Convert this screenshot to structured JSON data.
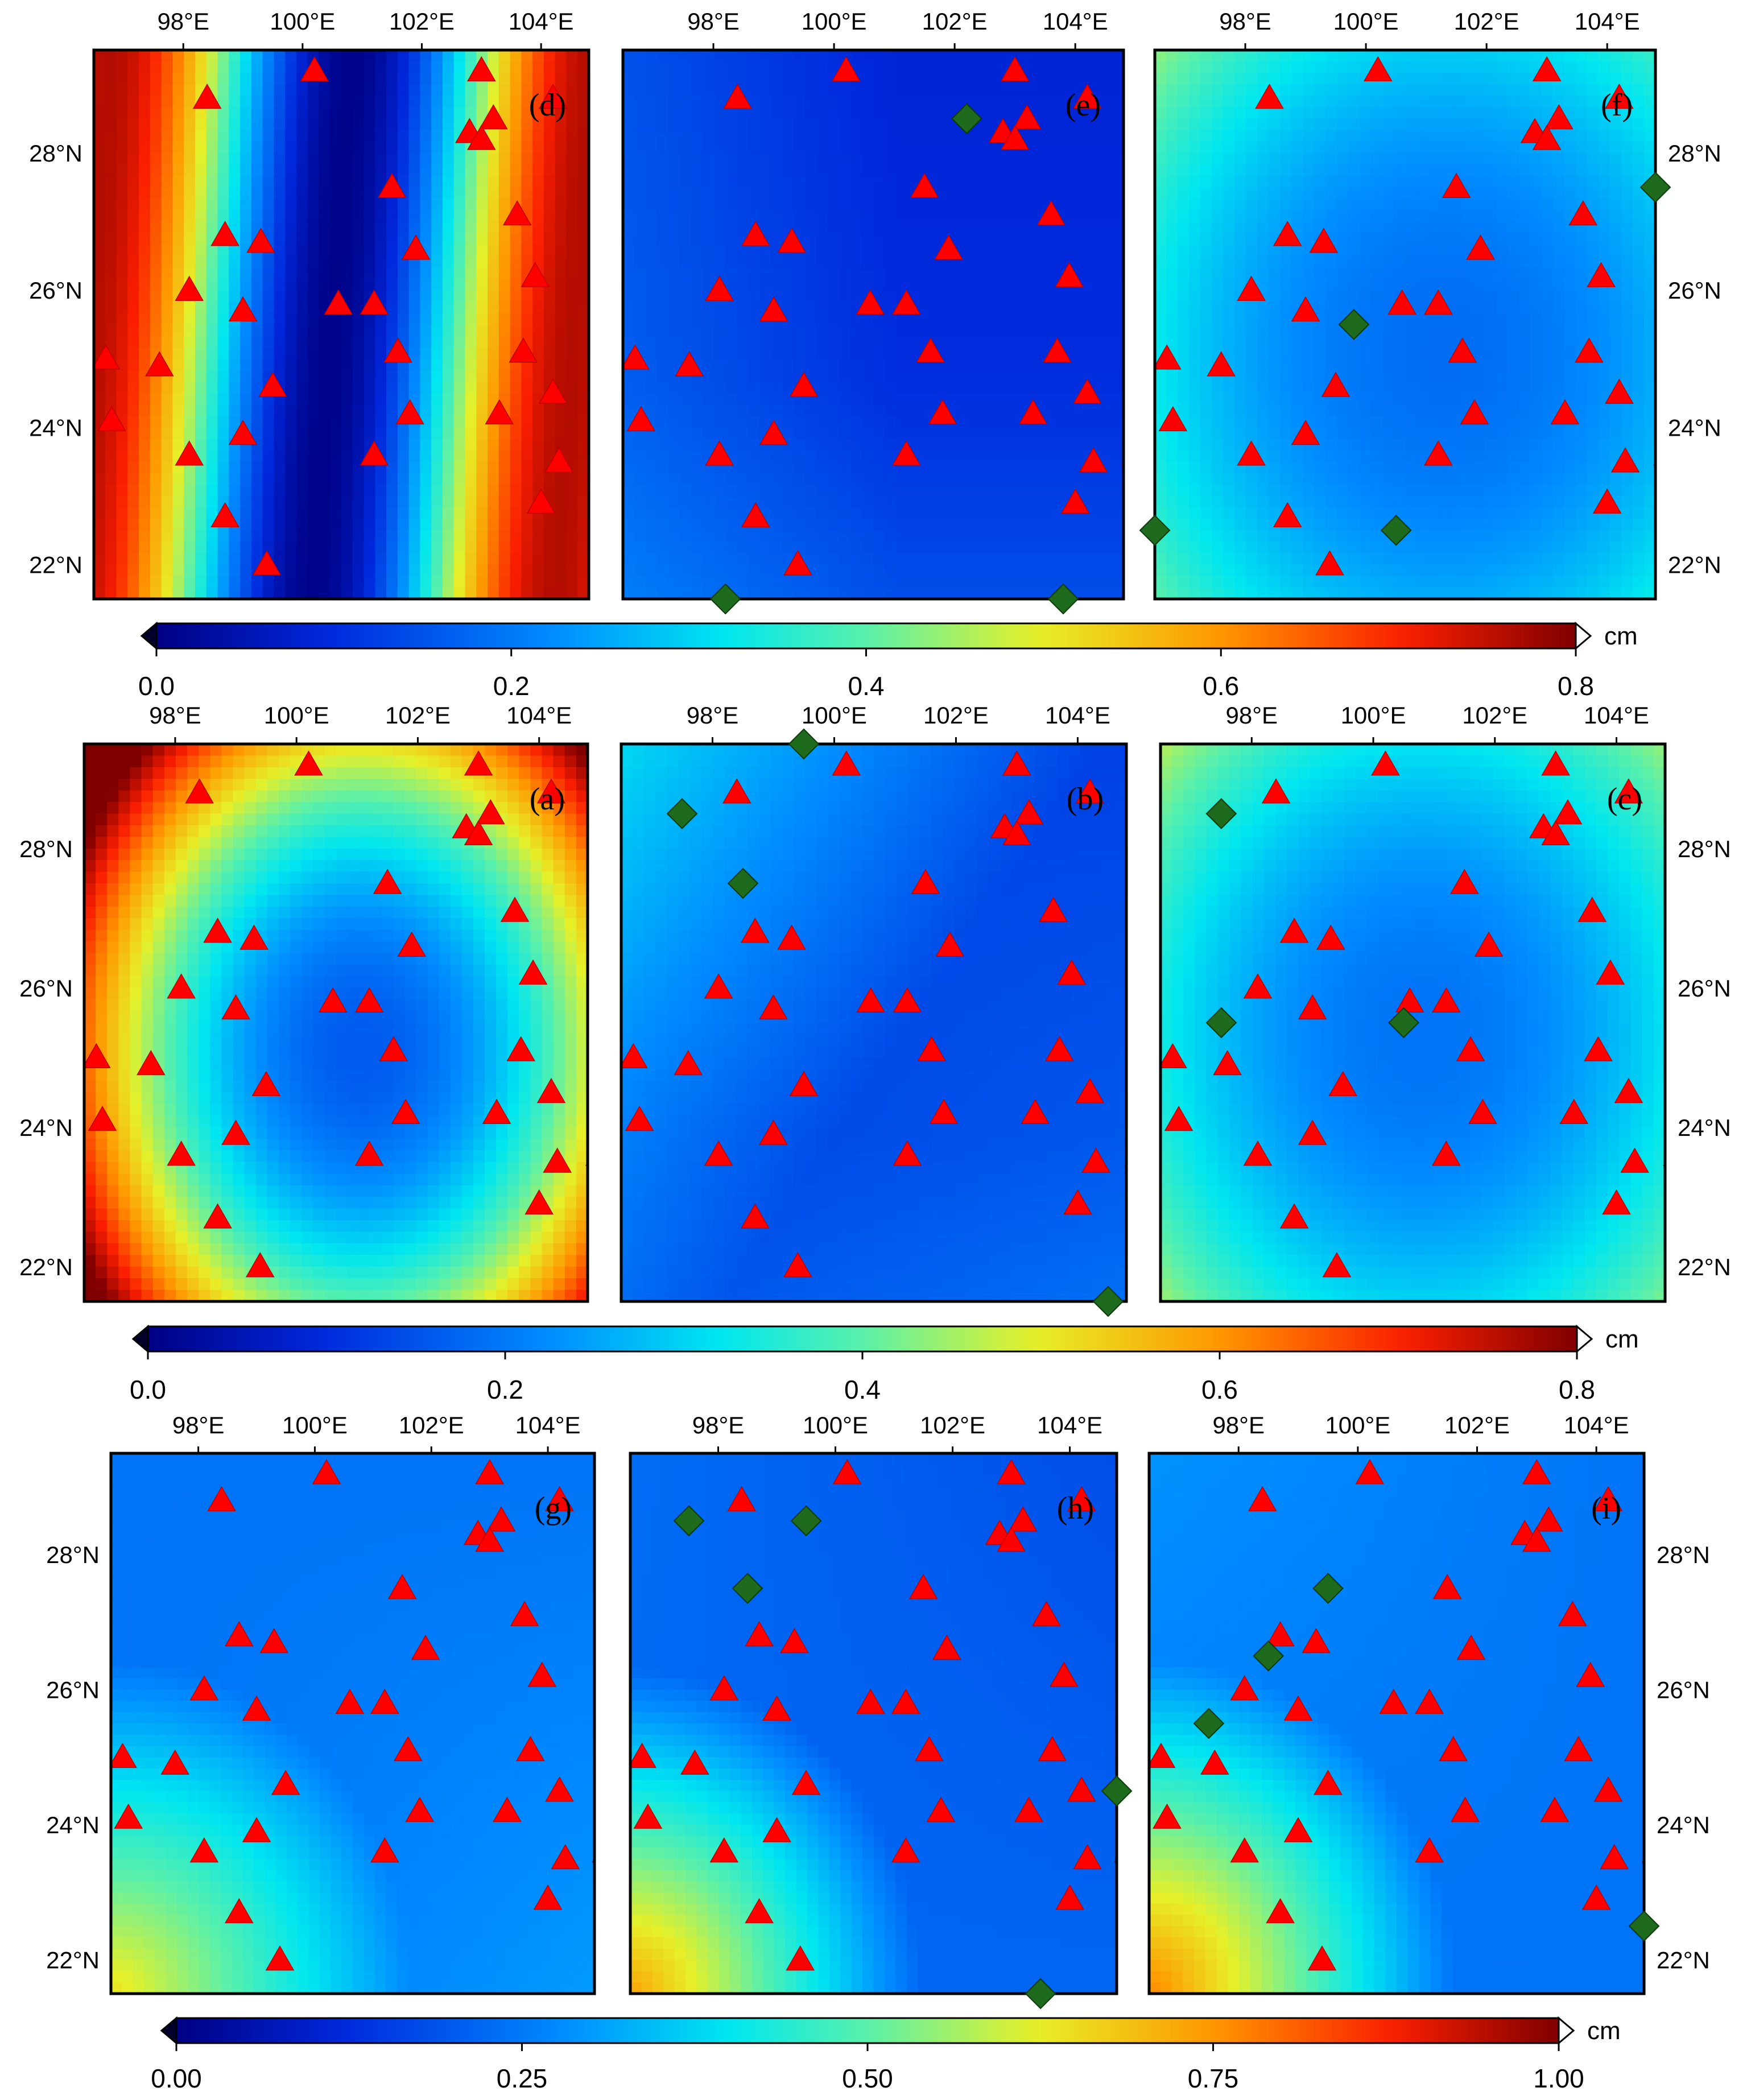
{
  "axes": {
    "lon_ticks": [
      "98°E",
      "100°E",
      "102°E",
      "104°E"
    ],
    "lat_ticks": [
      "22°N",
      "24°N",
      "26°N",
      "28°N"
    ],
    "lon_values": [
      98,
      100,
      102,
      104
    ],
    "lat_values": [
      22,
      24,
      26,
      28
    ],
    "lon_range": [
      96.5,
      104.8
    ],
    "lat_range": [
      21.5,
      29.5
    ]
  },
  "colorbars": [
    {
      "unit": "cm",
      "ticks": [
        "0.0",
        "0.2",
        "0.4",
        "0.6",
        "0.8"
      ],
      "range": [
        0,
        0.8
      ]
    },
    {
      "unit": "cm",
      "ticks": [
        "0.0",
        "0.2",
        "0.4",
        "0.6",
        "0.8"
      ],
      "range": [
        0,
        0.8
      ]
    },
    {
      "unit": "cm",
      "ticks": [
        "0.00",
        "0.25",
        "0.50",
        "0.75",
        "1.00"
      ],
      "range": [
        0,
        1.0
      ]
    }
  ],
  "panels": [
    {
      "label": "(d)",
      "field": "d",
      "diamonds": []
    },
    {
      "label": "(e)",
      "field": "e",
      "diamonds": [
        [
          98.2,
          21.5
        ],
        [
          103.8,
          21.5
        ],
        [
          102.2,
          28.5
        ]
      ]
    },
    {
      "label": "(f)",
      "field": "f",
      "diamonds": [
        [
          96.5,
          22.5
        ],
        [
          99.8,
          25.5
        ],
        [
          100.5,
          22.5
        ],
        [
          104.8,
          27.5
        ]
      ]
    },
    {
      "label": "(a)",
      "field": "a",
      "diamonds": []
    },
    {
      "label": "(b)",
      "field": "b",
      "diamonds": [
        [
          97.5,
          28.5
        ],
        [
          98.5,
          27.5
        ],
        [
          99.5,
          29.5
        ],
        [
          104.5,
          21.5
        ]
      ]
    },
    {
      "label": "(c)",
      "field": "c",
      "diamonds": [
        [
          97.5,
          28.5
        ],
        [
          97.5,
          25.5
        ],
        [
          100.5,
          25.5
        ]
      ]
    },
    {
      "label": "(g)",
      "field": "g",
      "diamonds": []
    },
    {
      "label": "(h)",
      "field": "h",
      "diamonds": [
        [
          97.5,
          28.5
        ],
        [
          99.5,
          28.5
        ],
        [
          98.5,
          27.5
        ],
        [
          104.8,
          24.5
        ],
        [
          103.5,
          21.5
        ]
      ]
    },
    {
      "label": "(i)",
      "field": "i",
      "diamonds": [
        [
          99.5,
          27.5
        ],
        [
          98.5,
          26.5
        ],
        [
          97.5,
          25.5
        ],
        [
          104.8,
          22.5
        ]
      ]
    }
  ],
  "stations": [
    [
      100.2,
      29.2
    ],
    [
      103.0,
      29.2
    ],
    [
      104.2,
      28.8
    ],
    [
      98.4,
      28.8
    ],
    [
      103.2,
      28.5
    ],
    [
      102.8,
      28.3
    ],
    [
      103.0,
      28.2
    ],
    [
      101.5,
      27.5
    ],
    [
      103.6,
      27.1
    ],
    [
      98.7,
      26.8
    ],
    [
      99.3,
      26.7
    ],
    [
      101.9,
      26.6
    ],
    [
      106.2,
      26.7
    ],
    [
      101.2,
      25.8
    ],
    [
      100.6,
      25.8
    ],
    [
      98.1,
      26.0
    ],
    [
      99.0,
      25.7
    ],
    [
      103.9,
      26.2
    ],
    [
      101.6,
      25.1
    ],
    [
      103.7,
      25.1
    ],
    [
      96.7,
      25.0
    ],
    [
      97.6,
      24.9
    ],
    [
      99.5,
      24.6
    ],
    [
      104.2,
      24.5
    ],
    [
      101.8,
      24.2
    ],
    [
      103.3,
      24.2
    ],
    [
      96.8,
      24.1
    ],
    [
      99.0,
      23.9
    ],
    [
      98.1,
      23.6
    ],
    [
      101.2,
      23.6
    ],
    [
      104.3,
      23.5
    ],
    [
      105.0,
      23.6
    ],
    [
      98.7,
      22.7
    ],
    [
      104.0,
      22.9
    ],
    [
      99.4,
      22.0
    ]
  ]
}
